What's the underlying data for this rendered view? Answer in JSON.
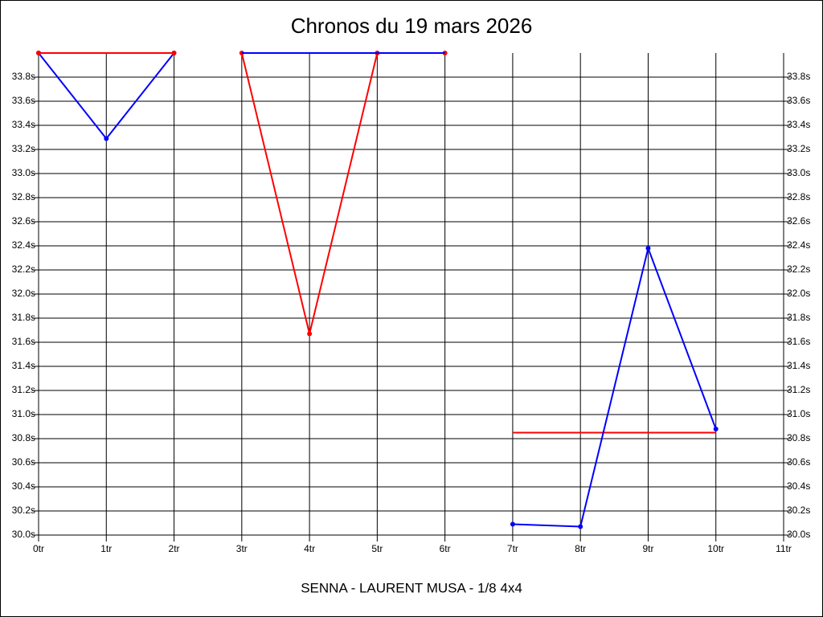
{
  "chart_data": {
    "type": "line",
    "title": "Chronos du 19 mars 2026",
    "x_label": "SENNA - LAURENT MUSA - 1/8 4x4",
    "xlim": [
      0,
      11
    ],
    "xticks": [
      {
        "value": 0,
        "label": "0tr"
      },
      {
        "value": 1,
        "label": "1tr"
      },
      {
        "value": 2,
        "label": "2tr"
      },
      {
        "value": 3,
        "label": "3tr"
      },
      {
        "value": 4,
        "label": "4tr"
      },
      {
        "value": 5,
        "label": "5tr"
      },
      {
        "value": 6,
        "label": "6tr"
      },
      {
        "value": 7,
        "label": "7tr"
      },
      {
        "value": 8,
        "label": "8tr"
      },
      {
        "value": 9,
        "label": "9tr"
      },
      {
        "value": 10,
        "label": "10tr"
      },
      {
        "value": 11,
        "label": "11tr"
      }
    ],
    "ylim": [
      30.0,
      34.0
    ],
    "yticks": [
      {
        "value": 30.0,
        "label": "30.0s"
      },
      {
        "value": 30.2,
        "label": "30.2s"
      },
      {
        "value": 30.4,
        "label": "30.4s"
      },
      {
        "value": 30.6,
        "label": "30.6s"
      },
      {
        "value": 30.8,
        "label": "30.8s"
      },
      {
        "value": 31.0,
        "label": "31.0s"
      },
      {
        "value": 31.2,
        "label": "31.2s"
      },
      {
        "value": 31.4,
        "label": "31.4s"
      },
      {
        "value": 31.6,
        "label": "31.6s"
      },
      {
        "value": 31.8,
        "label": "31.8s"
      },
      {
        "value": 32.0,
        "label": "32.0s"
      },
      {
        "value": 32.2,
        "label": "32.2s"
      },
      {
        "value": 32.4,
        "label": "32.4s"
      },
      {
        "value": 32.6,
        "label": "32.6s"
      },
      {
        "value": 32.8,
        "label": "32.8s"
      },
      {
        "value": 33.0,
        "label": "33.0s"
      },
      {
        "value": 33.2,
        "label": "33.2s"
      },
      {
        "value": 33.4,
        "label": "33.4s"
      },
      {
        "value": 33.6,
        "label": "33.6s"
      },
      {
        "value": 33.8,
        "label": "33.8s"
      }
    ],
    "grid": true,
    "series": [
      {
        "color": "#0000ff",
        "x": [
          0,
          1,
          2
        ],
        "values": [
          34.0,
          33.29,
          34.0
        ],
        "markers": true
      },
      {
        "color": "#ff0000",
        "x": [
          0,
          2
        ],
        "values": [
          34.0,
          34.0
        ],
        "markers": true
      },
      {
        "color": "#ff0000",
        "x": [
          3,
          4,
          5,
          6
        ],
        "values": [
          34.0,
          31.67,
          34.0,
          34.0
        ],
        "markers": true
      },
      {
        "color": "#0000ff",
        "x": [
          3,
          6
        ],
        "values": [
          34.0,
          34.0
        ],
        "markers": false
      },
      {
        "color": "#ff0000",
        "x": [
          7,
          10
        ],
        "values": [
          30.85,
          30.85
        ],
        "markers": false
      },
      {
        "color": "#0000ff",
        "x": [
          7,
          8,
          9,
          10
        ],
        "values": [
          30.09,
          30.07,
          32.38,
          30.88
        ],
        "markers": true
      }
    ]
  }
}
